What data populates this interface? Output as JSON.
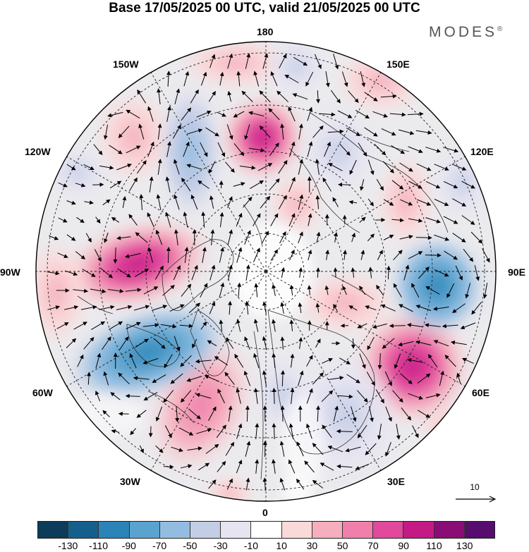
{
  "title": "Base 17/05/2025 00 UTC, valid 21/05/2025 00 UTC",
  "brand": "MODES",
  "brand_mark": "®",
  "longitude_labels": {
    "l180": "180",
    "l150e": "150E",
    "l120e": "120E",
    "l90e": "90E",
    "l60e": "60E",
    "l30e": "30E",
    "l0": "0",
    "l30w": "30W",
    "l60w": "60W",
    "l90w": "90W",
    "l120w": "120W",
    "l150w": "150W"
  },
  "reference_vector": {
    "label": "10",
    "icon": "arrow-right-icon"
  },
  "colorbar": {
    "colors": [
      "#0d3c5a",
      "#155f8c",
      "#2a84b8",
      "#5ba3cf",
      "#93bde0",
      "#c4cde6",
      "#e6e4f1",
      "#ffffff",
      "#fad9d9",
      "#f5aebd",
      "#f07fac",
      "#e2489c",
      "#c41a85",
      "#8a0d75",
      "#560d6e"
    ],
    "ticks": [
      "-130",
      "-110",
      "-90",
      "-70",
      "-50",
      "-30",
      "-10",
      "10",
      "30",
      "50",
      "70",
      "90",
      "110",
      "130"
    ]
  },
  "map": {
    "projection": "north-polar-stereographic",
    "center": "north-pole",
    "graticule": "dashed"
  }
}
